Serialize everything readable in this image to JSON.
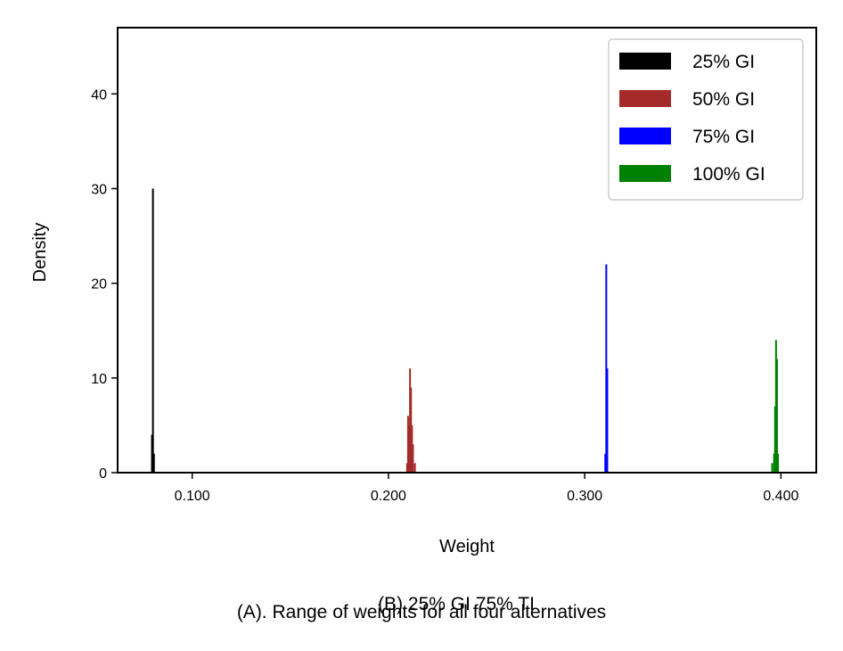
{
  "chart_data": {
    "type": "bar",
    "xlabel": "Weight",
    "ylabel": "Density",
    "xlim": [
      0.062,
      0.418
    ],
    "ylim": [
      0,
      47
    ],
    "xticks": [
      0.1,
      0.2,
      0.3,
      0.4
    ],
    "xtick_labels": [
      "0.100",
      "0.200",
      "0.300",
      "0.400"
    ],
    "yticks": [
      0,
      10,
      20,
      30,
      40
    ],
    "ytick_labels": [
      "0",
      "10",
      "20",
      "30",
      "40"
    ],
    "grid": false,
    "legend_position": "top-right",
    "series": [
      {
        "name": "25% GI",
        "color": "#000000",
        "bars": [
          {
            "x": 0.0795,
            "y": 4
          },
          {
            "x": 0.08,
            "y": 30
          },
          {
            "x": 0.0805,
            "y": 2
          }
        ]
      },
      {
        "name": "50% GI",
        "color": "#a52a2a",
        "bars": [
          {
            "x": 0.2095,
            "y": 1
          },
          {
            "x": 0.21,
            "y": 6
          },
          {
            "x": 0.2105,
            "y": 5
          },
          {
            "x": 0.211,
            "y": 11
          },
          {
            "x": 0.2115,
            "y": 9
          },
          {
            "x": 0.212,
            "y": 5
          },
          {
            "x": 0.2125,
            "y": 3
          },
          {
            "x": 0.2135,
            "y": 1
          }
        ]
      },
      {
        "name": "75% GI",
        "color": "#0000ff",
        "bars": [
          {
            "x": 0.3105,
            "y": 2
          },
          {
            "x": 0.311,
            "y": 22
          },
          {
            "x": 0.3115,
            "y": 11
          }
        ]
      },
      {
        "name": "100% GI",
        "color": "#008000",
        "bars": [
          {
            "x": 0.3955,
            "y": 1
          },
          {
            "x": 0.3965,
            "y": 2
          },
          {
            "x": 0.397,
            "y": 7
          },
          {
            "x": 0.3975,
            "y": 14
          },
          {
            "x": 0.398,
            "y": 12
          },
          {
            "x": 0.3985,
            "y": 2
          }
        ]
      }
    ]
  },
  "captions": {
    "subtitle_b": "(B) 25% GI 75% TI",
    "caption_a": "(A). Range of weights for all four alternatives"
  }
}
